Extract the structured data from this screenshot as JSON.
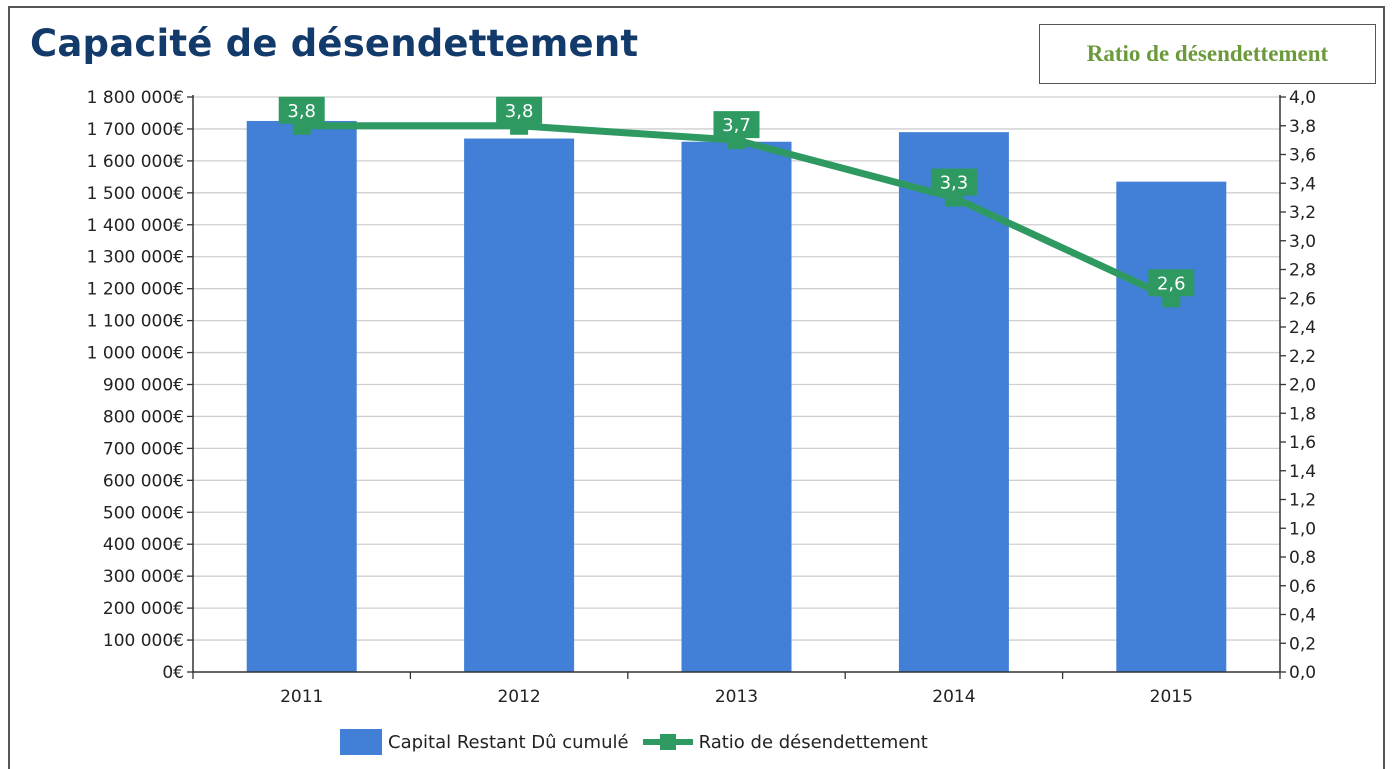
{
  "page": {
    "title": "Capacité de désendettement",
    "badge": "Ratio de désendettement"
  },
  "colors": {
    "bar": "#4180d6",
    "line": "#2e9a62",
    "title": "#123a6b",
    "badge_text": "#6b9a3c"
  },
  "chart_data": {
    "type": "bar",
    "categories": [
      "2011",
      "2012",
      "2013",
      "2014",
      "2015"
    ],
    "series": [
      {
        "name": "Capital Restant Dû cumulé",
        "type": "bar",
        "axis": "left",
        "values": [
          1725000,
          1670000,
          1660000,
          1690000,
          1535000
        ]
      },
      {
        "name": "Ratio de désendettement",
        "type": "line",
        "axis": "right",
        "values": [
          3.8,
          3.8,
          3.7,
          3.3,
          2.6
        ],
        "data_labels": [
          "3,8",
          "3,8",
          "3,7",
          "3,3",
          "2,6"
        ]
      }
    ],
    "y_left": {
      "min": 0,
      "max": 1800000,
      "step": 100000,
      "tick_labels": [
        "0€",
        "100 000€",
        "200 000€",
        "300 000€",
        "400 000€",
        "500 000€",
        "600 000€",
        "700 000€",
        "800 000€",
        "900 000€",
        "1 000 000€",
        "1 100 000€",
        "1 200 000€",
        "1 300 000€",
        "1 400 000€",
        "1 500 000€",
        "1 600 000€",
        "1 700 000€",
        "1 800 000€"
      ]
    },
    "y_right": {
      "min": 0,
      "max": 4.0,
      "step": 0.2,
      "tick_labels": [
        "0,0",
        "0,2",
        "0,4",
        "0,6",
        "0,8",
        "1,0",
        "1,2",
        "1,4",
        "1,6",
        "1,8",
        "2,0",
        "2,2",
        "2,4",
        "2,6",
        "2,8",
        "3,0",
        "3,2",
        "3,4",
        "3,6",
        "3,8",
        "4,0"
      ]
    },
    "grid": true,
    "legend_position": "bottom"
  }
}
